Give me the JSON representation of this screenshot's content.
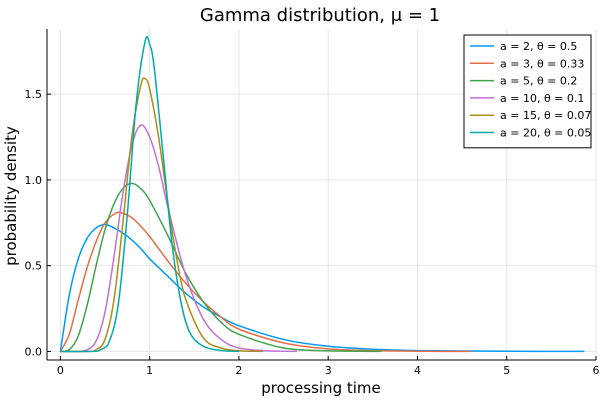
{
  "chart_data": {
    "type": "line",
    "title": "Gamma distribution, μ = 1",
    "xlabel": "processing time",
    "ylabel": "probability density",
    "xlim": [
      -0.15,
      6.0
    ],
    "ylim": [
      -0.05,
      1.88
    ],
    "xticks": [
      0,
      1,
      2,
      3,
      4,
      5,
      6
    ],
    "xtick_labels": [
      "0",
      "1",
      "2",
      "3",
      "4",
      "5",
      "6"
    ],
    "yticks": [
      0.0,
      0.5,
      1.0,
      1.5
    ],
    "ytick_labels": [
      "0.0",
      "0.5",
      "1.0",
      "1.5"
    ],
    "grid": true,
    "legend_position": "top-right",
    "series": [
      {
        "name": "a = 2, θ = 0.5",
        "color": "#009AFA",
        "x": [
          0,
          0.1,
          0.2,
          0.3,
          0.4,
          0.5,
          0.6,
          0.7,
          0.8,
          0.9,
          1.0,
          1.2,
          1.4,
          1.6,
          1.8,
          2.0,
          2.5,
          3.0,
          3.5,
          4.0,
          5.0,
          5.87
        ],
        "y": [
          0,
          0.33,
          0.54,
          0.66,
          0.72,
          0.74,
          0.72,
          0.69,
          0.65,
          0.6,
          0.54,
          0.44,
          0.34,
          0.26,
          0.2,
          0.15,
          0.07,
          0.03,
          0.013,
          0.005,
          0.001,
          0.0
        ]
      },
      {
        "name": "a = 3, θ = 0.33",
        "color": "#E36F47",
        "x": [
          0,
          0.1,
          0.2,
          0.3,
          0.4,
          0.5,
          0.6,
          0.67,
          0.8,
          0.9,
          1.0,
          1.2,
          1.4,
          1.6,
          1.8,
          2.0,
          2.5,
          3.0,
          3.5,
          4.0,
          4.6
        ],
        "y": [
          0,
          0.1,
          0.3,
          0.49,
          0.64,
          0.75,
          0.8,
          0.81,
          0.78,
          0.73,
          0.67,
          0.53,
          0.4,
          0.29,
          0.2,
          0.13,
          0.05,
          0.015,
          0.005,
          0.001,
          0.0
        ]
      },
      {
        "name": "a = 5, θ = 0.2",
        "color": "#3EA44E",
        "x": [
          0,
          0.1,
          0.2,
          0.3,
          0.4,
          0.5,
          0.6,
          0.7,
          0.8,
          0.9,
          1.0,
          1.2,
          1.4,
          1.6,
          1.8,
          2.0,
          2.5,
          3.0,
          3.6
        ],
        "y": [
          0,
          0.01,
          0.09,
          0.27,
          0.5,
          0.71,
          0.86,
          0.95,
          0.98,
          0.95,
          0.88,
          0.68,
          0.46,
          0.29,
          0.17,
          0.1,
          0.02,
          0.004,
          0.0
        ]
      },
      {
        "name": "a = 10, θ = 0.1",
        "color": "#C271D2",
        "x": [
          0,
          0.2,
          0.3,
          0.4,
          0.5,
          0.6,
          0.7,
          0.8,
          0.9,
          1.0,
          1.1,
          1.2,
          1.4,
          1.6,
          1.8,
          2.0,
          2.3,
          2.65
        ],
        "y": [
          0,
          0.0,
          0.01,
          0.06,
          0.23,
          0.55,
          0.92,
          1.2,
          1.32,
          1.25,
          1.08,
          0.85,
          0.45,
          0.19,
          0.07,
          0.02,
          0.004,
          0.0
        ]
      },
      {
        "name": "a = 15, θ = 0.07",
        "color": "#AC8D18",
        "x": [
          0,
          0.3,
          0.4,
          0.5,
          0.6,
          0.7,
          0.8,
          0.9,
          0.95,
          1.0,
          1.1,
          1.2,
          1.3,
          1.4,
          1.6,
          1.8,
          2.0,
          2.27
        ],
        "y": [
          0,
          0.0,
          0.01,
          0.07,
          0.3,
          0.75,
          1.25,
          1.55,
          1.59,
          1.53,
          1.25,
          0.88,
          0.55,
          0.31,
          0.08,
          0.02,
          0.004,
          0.0
        ]
      },
      {
        "name": "a = 20, θ = 0.05",
        "color": "#00A9AD",
        "x": [
          0,
          0.35,
          0.45,
          0.55,
          0.65,
          0.75,
          0.85,
          0.95,
          1.0,
          1.05,
          1.15,
          1.25,
          1.35,
          1.45,
          1.6,
          1.8,
          2.0
        ],
        "y": [
          0,
          0.0,
          0.01,
          0.06,
          0.28,
          0.8,
          1.45,
          1.81,
          1.79,
          1.66,
          1.15,
          0.63,
          0.29,
          0.11,
          0.03,
          0.005,
          0.0
        ]
      }
    ]
  }
}
